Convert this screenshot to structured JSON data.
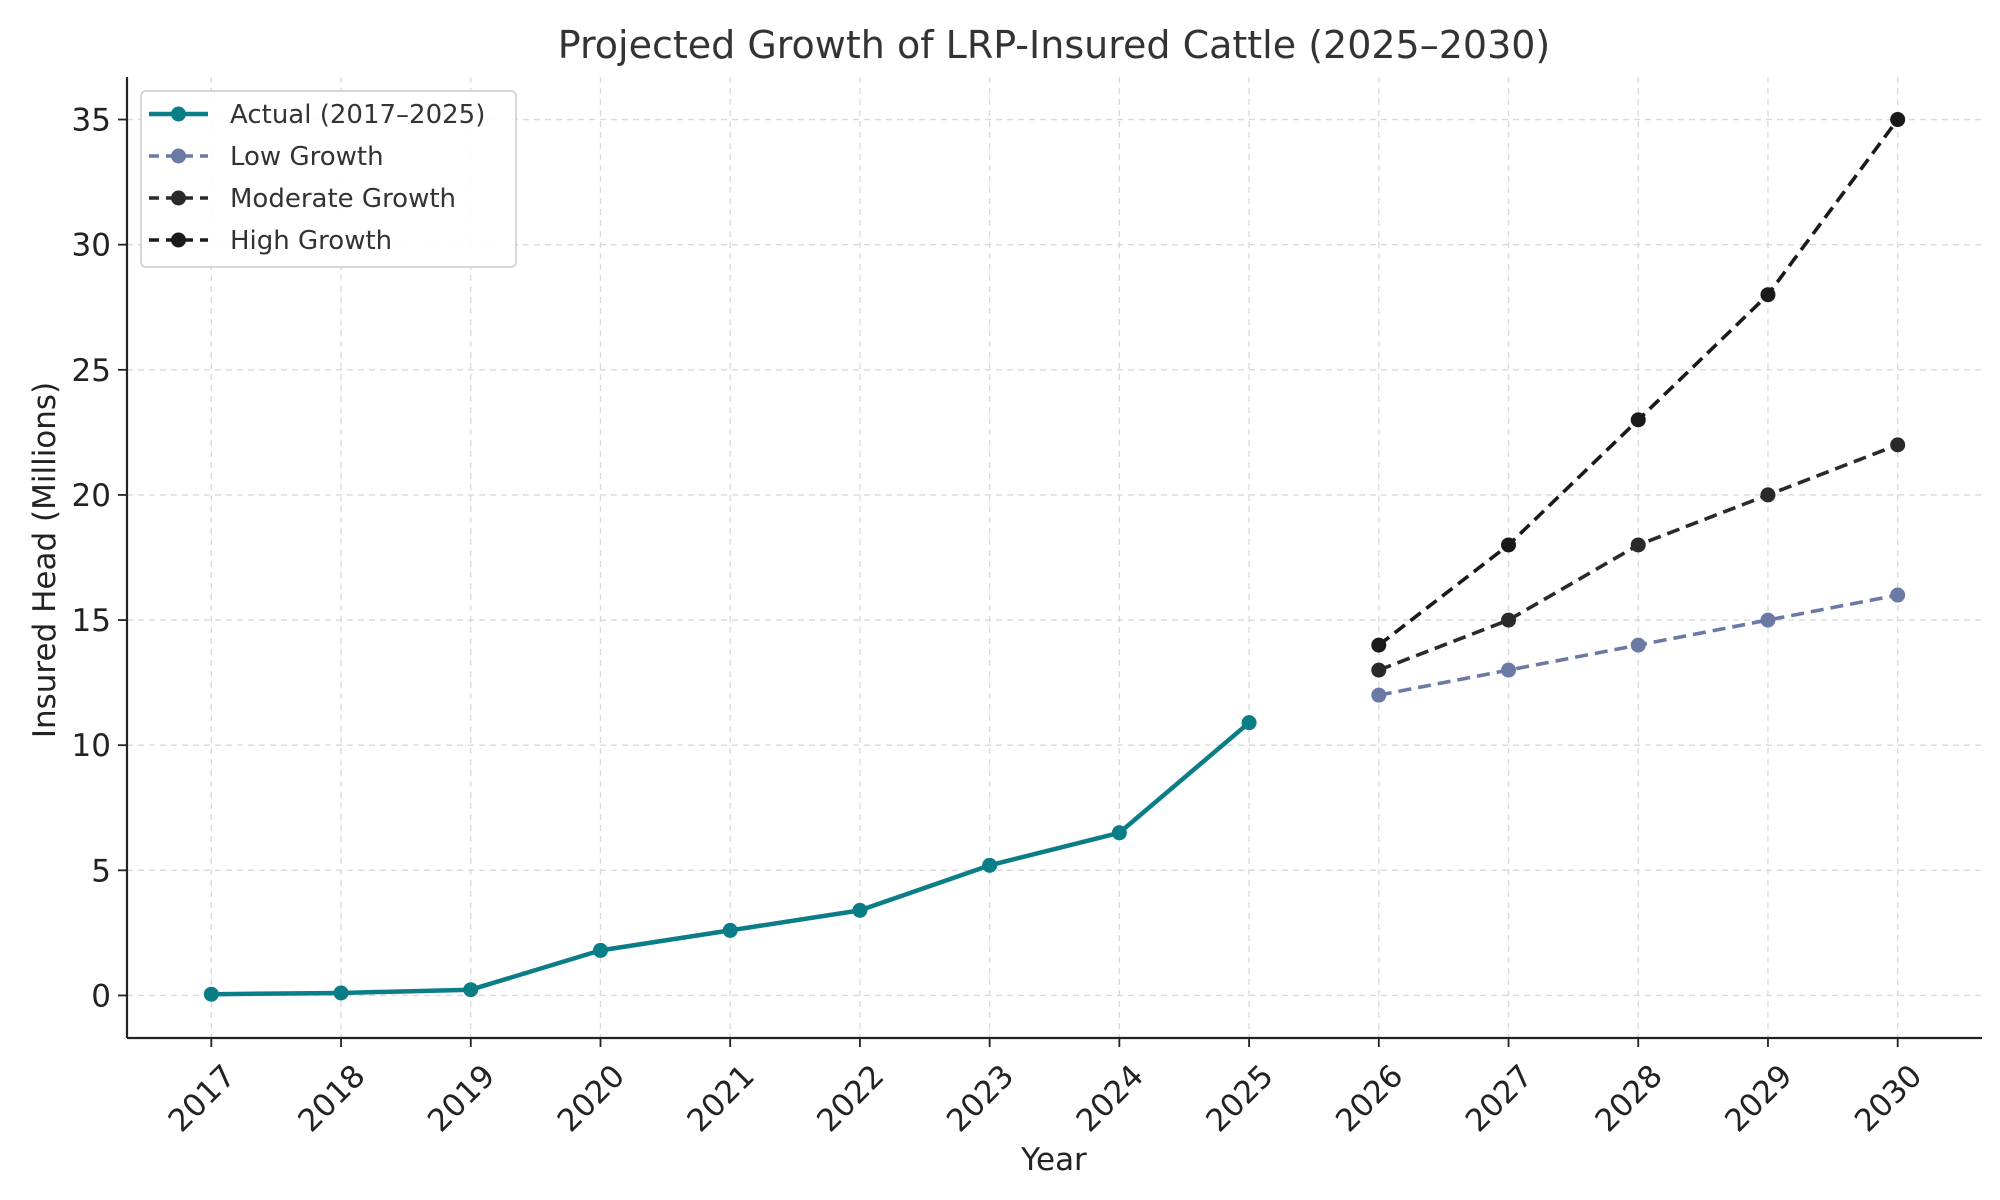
{
  "chart_data": {
    "type": "line",
    "title": "Projected Growth of LRP-Insured Cattle (2025–2030)",
    "xlabel": "Year",
    "ylabel": "Insured Head (Millions)",
    "x_ticks": [
      "2017",
      "2018",
      "2019",
      "2020",
      "2021",
      "2022",
      "2023",
      "2024",
      "2025",
      "2026",
      "2027",
      "2028",
      "2029",
      "2030"
    ],
    "y_ticks": [
      0,
      5,
      10,
      15,
      20,
      25,
      30,
      35
    ],
    "xlim": [
      2016.35,
      2030.65
    ],
    "ylim": [
      -1.7,
      36.7
    ],
    "grid": true,
    "legend_position": "top-left",
    "series": [
      {
        "name": "Actual (2017–2025)",
        "color": "#0a7d86",
        "style": "solid",
        "x": [
          2017,
          2018,
          2019,
          2020,
          2021,
          2022,
          2023,
          2024,
          2025
        ],
        "y": [
          0.05,
          0.1,
          0.23,
          1.8,
          2.6,
          3.4,
          5.2,
          6.5,
          10.9
        ]
      },
      {
        "name": "Low Growth",
        "color": "#6b7aa5",
        "style": "dashed",
        "x": [
          2026,
          2027,
          2028,
          2029,
          2030
        ],
        "y": [
          12,
          13,
          14,
          15,
          16
        ]
      },
      {
        "name": "Moderate Growth",
        "color": "#2a2a2a",
        "style": "dashed",
        "x": [
          2026,
          2027,
          2028,
          2029,
          2030
        ],
        "y": [
          13,
          15,
          18,
          20,
          22
        ]
      },
      {
        "name": "High Growth",
        "color": "#1a1a1a",
        "style": "dashed",
        "x": [
          2026,
          2027,
          2028,
          2029,
          2030
        ],
        "y": [
          14,
          18,
          23,
          28,
          35
        ]
      }
    ]
  }
}
